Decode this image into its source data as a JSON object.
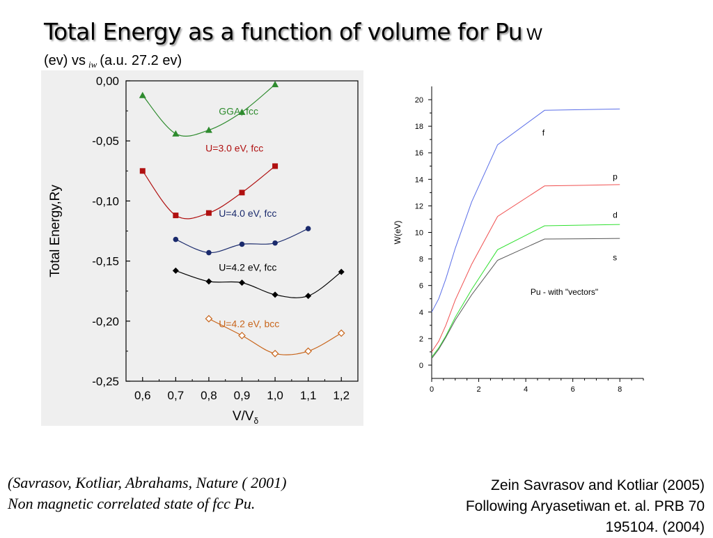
{
  "slide": {
    "title": "Total Energy as a function of volume for Pu",
    "title_suffix": "W",
    "subtitle_pre": "(ev) vs",
    "subtitle_sub": "iw",
    "subtitle_post": "(a.u. 27.2 ev)",
    "caption_left_line1": "(Savrasov, Kotliar, Abrahams,  Nature ( 2001)",
    "caption_left_line2": "Non magnetic correlated state of fcc Pu.",
    "caption_right_line1": "Zein Savrasov and Kotliar (2005)",
    "caption_right_line2": "Following Aryasetiwan et. al. PRB 70",
    "caption_right_line3": "195104.  (2004)"
  },
  "chart_data": [
    {
      "type": "line",
      "ylabel": "Total Energy,Ry",
      "xlabel_main": "V/V",
      "xlabel_sub": "δ",
      "xlim": [
        0.55,
        1.25
      ],
      "ylim": [
        -0.25,
        0.0
      ],
      "x_ticks": [
        0.6,
        0.7,
        0.8,
        0.9,
        1.0,
        1.1,
        1.2
      ],
      "x_tick_labels": [
        "0,6",
        "0,7",
        "0,8",
        "0,9",
        "1,0",
        "1,1",
        "1,2"
      ],
      "y_ticks": [
        0.0,
        -0.05,
        -0.1,
        -0.15,
        -0.2,
        -0.25
      ],
      "y_tick_labels": [
        "0,00",
        "-0,05",
        "-0,10",
        "-0,15",
        "-0,20",
        "-0,25"
      ],
      "background": "#efefef",
      "series": [
        {
          "name": "GGA, fcc",
          "color": "#2e8b2e",
          "marker": "triangle",
          "x": [
            0.6,
            0.7,
            0.8,
            0.9,
            1.0
          ],
          "y": [
            -0.012,
            -0.044,
            -0.041,
            -0.026,
            -0.003
          ]
        },
        {
          "name": "U=3.0 eV, fcc",
          "color": "#b01010",
          "marker": "square",
          "x": [
            0.6,
            0.7,
            0.8,
            0.9,
            1.0
          ],
          "y": [
            -0.075,
            -0.112,
            -0.11,
            -0.093,
            -0.071
          ]
        },
        {
          "name": "U=4.0 eV, fcc",
          "color": "#1a2a6c",
          "marker": "circle",
          "x": [
            0.7,
            0.8,
            0.9,
            1.0,
            1.1
          ],
          "y": [
            -0.132,
            -0.143,
            -0.136,
            -0.135,
            -0.123
          ]
        },
        {
          "name": "U=4.2 eV, fcc",
          "color": "#000000",
          "marker": "diamond",
          "x": [
            0.7,
            0.8,
            0.9,
            1.0,
            1.1,
            1.2
          ],
          "y": [
            -0.158,
            -0.167,
            -0.168,
            -0.178,
            -0.179,
            -0.159
          ]
        },
        {
          "name": "U=4.2 eV, bcc",
          "color": "#c8651b",
          "marker": "diamond-open",
          "x": [
            0.8,
            0.9,
            1.0,
            1.1,
            1.2
          ],
          "y": [
            -0.198,
            -0.212,
            -0.227,
            -0.225,
            -0.21
          ]
        }
      ]
    },
    {
      "type": "line",
      "ylabel": "W(eV)",
      "xlabel": "",
      "annotation": "Pu - with \"vectors\"",
      "xlim": [
        0,
        9
      ],
      "ylim": [
        -1,
        21
      ],
      "x_ticks": [
        0,
        2,
        4,
        6,
        8
      ],
      "y_ticks": [
        0,
        2,
        4,
        6,
        8,
        10,
        12,
        14,
        16,
        18,
        20
      ],
      "series": [
        {
          "name": "f",
          "color": "#5a6ee8",
          "x": [
            0,
            0.3,
            0.6,
            1.0,
            1.7,
            2.8,
            4.8,
            6.5,
            8.0
          ],
          "y": [
            4.0,
            5.0,
            6.5,
            8.8,
            12.3,
            16.6,
            19.2,
            19.25,
            19.3
          ]
        },
        {
          "name": "p",
          "color": "#f05050",
          "x": [
            0,
            0.3,
            0.6,
            1.0,
            1.7,
            2.8,
            4.8,
            6.5,
            8.0
          ],
          "y": [
            1.0,
            1.8,
            3.0,
            4.9,
            7.6,
            11.2,
            13.5,
            13.55,
            13.6
          ]
        },
        {
          "name": "d",
          "color": "#2fe02f",
          "x": [
            0,
            0.3,
            0.6,
            1.0,
            1.7,
            2.8,
            4.8,
            6.5,
            8.0
          ],
          "y": [
            0.6,
            1.3,
            2.2,
            3.6,
            5.7,
            8.7,
            10.5,
            10.55,
            10.6
          ]
        },
        {
          "name": "s",
          "color": "#555555",
          "x": [
            0,
            0.3,
            0.6,
            1.0,
            1.7,
            2.8,
            4.8,
            6.5,
            8.0
          ],
          "y": [
            0.5,
            1.2,
            2.1,
            3.4,
            5.3,
            7.9,
            9.5,
            9.52,
            9.55
          ]
        }
      ]
    }
  ]
}
